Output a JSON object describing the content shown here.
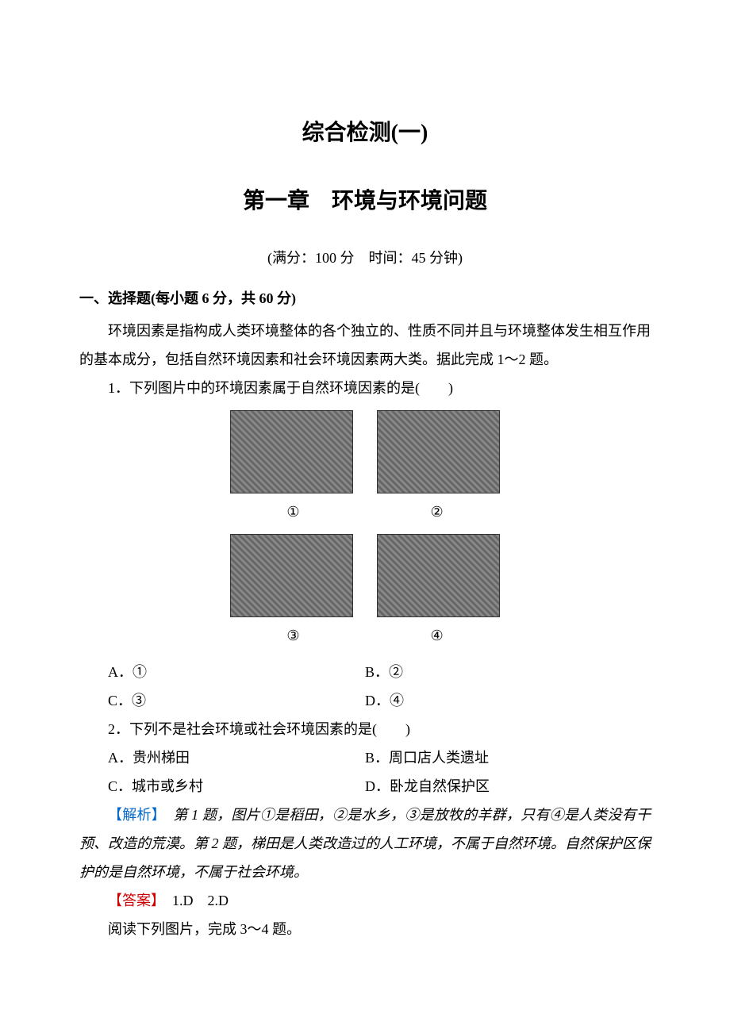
{
  "title": {
    "main": "综合检测(一)",
    "chapter": "第一章　环境与环境问题",
    "score_info": "(满分：100 分　时间：45 分钟)"
  },
  "section1": {
    "heading": "一、选择题(每小题 6 分，共 60 分)",
    "intro": "环境因素是指构成人类环境整体的各个独立的、性质不同并且与环境整体发生相互作用的基本成分，包括自然环境因素和社会环境因素两大类。据此完成 1～2 题。"
  },
  "q1": {
    "text": "1．下列图片中的环境因素属于自然环境因素的是(　　)",
    "img_labels": {
      "1": "①",
      "2": "②",
      "3": "③",
      "4": "④"
    },
    "options": {
      "a": "A．①",
      "b": "B．②",
      "c": "C．③",
      "d": "D．④"
    }
  },
  "q2": {
    "text": "2．下列不是社会环境或社会环境因素的是(　　)",
    "options": {
      "a": "A．贵州梯田",
      "b": "B．周口店人类遗址",
      "c": "C．城市或乡村",
      "d": "D．卧龙自然保护区"
    }
  },
  "analysis12": {
    "label": "【解析】",
    "text": "　第 1 题，图片①是稻田，②是水乡，③是放牧的羊群，只有④是人类没有干预、改造的荒漠。第 2 题，梯田是人类改造过的人工环境，不属于自然环境。自然保护区保护的是自然环境，不属于社会环境。"
  },
  "answer12": {
    "label": "【答案】",
    "text": "　1.D　2.D"
  },
  "q34_intro": "阅读下列图片，完成 3～4 题。",
  "colors": {
    "analysis_label": "#0066cc",
    "answer_label": "#cc0000",
    "text": "#000000",
    "background": "#ffffff"
  }
}
